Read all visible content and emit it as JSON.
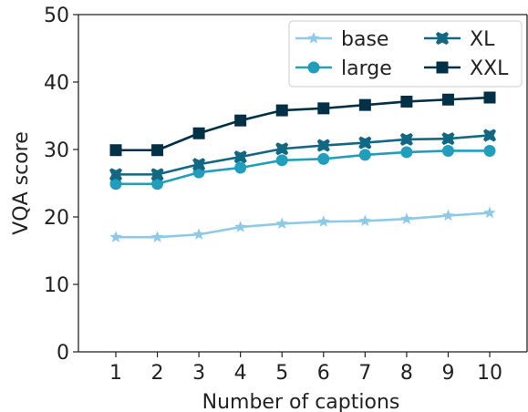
{
  "chart_data": {
    "type": "line",
    "title": "",
    "xlabel": "Number of captions",
    "ylabel": "VQA score",
    "x": [
      1,
      2,
      3,
      4,
      5,
      6,
      7,
      8,
      9,
      10
    ],
    "ylim": [
      0,
      50
    ],
    "yticks": [
      "0",
      "10",
      "20",
      "30",
      "40",
      "50"
    ],
    "xticks": [
      "1",
      "2",
      "3",
      "4",
      "5",
      "6",
      "7",
      "8",
      "9",
      "10"
    ],
    "grid": false,
    "legend_position": "top-right",
    "series": [
      {
        "name": "base",
        "color": "#8ecae6",
        "marker": "star",
        "values": [
          17.0,
          17.0,
          17.4,
          18.5,
          19.0,
          19.3,
          19.4,
          19.7,
          20.2,
          20.6
        ]
      },
      {
        "name": "large",
        "color": "#219ebc",
        "marker": "circle",
        "values": [
          24.9,
          24.9,
          26.6,
          27.3,
          28.4,
          28.6,
          29.2,
          29.6,
          29.8,
          29.8
        ]
      },
      {
        "name": "XL",
        "color": "#126782",
        "marker": "x-filled",
        "values": [
          26.3,
          26.3,
          27.8,
          28.9,
          30.1,
          30.6,
          31.0,
          31.5,
          31.6,
          32.1
        ]
      },
      {
        "name": "XXL",
        "color": "#023047",
        "marker": "square",
        "values": [
          29.9,
          29.9,
          32.4,
          34.3,
          35.8,
          36.1,
          36.6,
          37.1,
          37.4,
          37.7
        ]
      }
    ]
  }
}
